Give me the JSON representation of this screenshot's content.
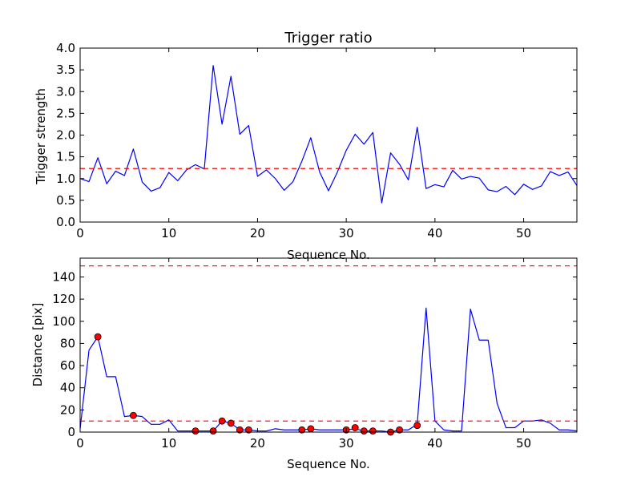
{
  "chart_data": [
    {
      "type": "line",
      "title": "Trigger ratio",
      "xlabel": "Sequence No.",
      "ylabel": "Trigger strength",
      "xlim": [
        0,
        56
      ],
      "ylim": [
        0,
        4.0
      ],
      "xticks": [
        0,
        10,
        20,
        30,
        40,
        50
      ],
      "xtick_labels": [
        "0",
        "10",
        "20",
        "30",
        "40",
        "50"
      ],
      "yticks": [
        0,
        0.5,
        1.0,
        1.5,
        2.0,
        2.5,
        3.0,
        3.5,
        4.0
      ],
      "ytick_labels": [
        "0.0",
        "0.5",
        "1.0",
        "1.5",
        "2.0",
        "2.5",
        "3.0",
        "3.5",
        "4.0"
      ],
      "grid": false,
      "series": [
        {
          "kind": "line",
          "color": "#0000ff",
          "x": [
            0,
            1,
            2,
            3,
            4,
            5,
            6,
            7,
            8,
            9,
            10,
            11,
            12,
            13,
            14,
            15,
            16,
            17,
            18,
            19,
            20,
            21,
            22,
            23,
            24,
            25,
            26,
            27,
            28,
            29,
            30,
            31,
            32,
            33,
            34,
            35,
            36,
            37,
            38,
            39,
            40,
            41,
            42,
            43,
            44,
            45,
            46,
            47,
            48,
            49,
            50,
            51,
            52,
            53,
            54,
            55,
            56
          ],
          "y": [
            1.0,
            0.93,
            1.48,
            0.88,
            1.17,
            1.07,
            1.68,
            0.92,
            0.71,
            0.79,
            1.14,
            0.95,
            1.2,
            1.32,
            1.22,
            3.6,
            2.25,
            3.35,
            2.02,
            2.22,
            1.05,
            1.2,
            1.0,
            0.73,
            0.93,
            1.4,
            1.94,
            1.15,
            0.72,
            1.15,
            1.65,
            2.02,
            1.79,
            2.06,
            0.44,
            1.59,
            1.33,
            0.97,
            2.18,
            0.77,
            0.86,
            0.81,
            1.19,
            0.99,
            1.05,
            1.01,
            0.74,
            0.7,
            0.82,
            0.63,
            0.87,
            0.75,
            0.83,
            1.16,
            1.07,
            1.15,
            0.84
          ]
        },
        {
          "kind": "hline",
          "color": "#ff0000",
          "dashed": true,
          "y": 1.23
        }
      ]
    },
    {
      "type": "line",
      "title": "",
      "xlabel": "Sequence No.",
      "ylabel": "Distance [pix]",
      "xlim": [
        0,
        56
      ],
      "ylim": [
        0,
        157
      ],
      "xticks": [
        0,
        10,
        20,
        30,
        40,
        50
      ],
      "xtick_labels": [
        "0",
        "10",
        "20",
        "30",
        "40",
        "50"
      ],
      "yticks": [
        0,
        20,
        40,
        60,
        80,
        100,
        120,
        140
      ],
      "ytick_labels": [
        "0",
        "20",
        "40",
        "60",
        "80",
        "100",
        "120",
        "140"
      ],
      "grid": false,
      "series": [
        {
          "kind": "line",
          "color": "#0000ff",
          "x": [
            0,
            1,
            2,
            3,
            4,
            5,
            6,
            7,
            8,
            9,
            10,
            11,
            12,
            13,
            14,
            15,
            16,
            17,
            18,
            19,
            20,
            21,
            22,
            23,
            24,
            25,
            26,
            27,
            28,
            29,
            30,
            31,
            32,
            33,
            34,
            35,
            36,
            37,
            38,
            39,
            40,
            41,
            42,
            43,
            44,
            45,
            46,
            47,
            48,
            49,
            50,
            51,
            52,
            53,
            54,
            55,
            56
          ],
          "y": [
            3,
            74,
            86,
            50,
            50,
            14,
            15,
            14,
            7,
            7,
            11,
            1,
            1,
            1,
            1,
            1,
            10,
            8,
            2,
            2,
            1,
            1,
            3,
            2,
            2,
            2,
            3,
            2,
            2,
            2,
            2,
            3,
            1,
            1,
            1,
            0,
            2,
            2,
            7,
            112,
            10,
            2,
            1,
            1,
            111,
            83,
            83,
            26,
            4,
            4,
            10,
            10,
            11,
            8,
            2,
            2,
            1
          ]
        },
        {
          "kind": "scatter",
          "color": "#ff0000",
          "x": [
            2,
            6,
            13,
            15,
            16,
            17,
            18,
            19,
            25,
            26,
            30,
            31,
            32,
            33,
            35,
            36,
            38
          ],
          "y": [
            86,
            15,
            1,
            1,
            10,
            8,
            2,
            2,
            2,
            3,
            2,
            4,
            1,
            1,
            0,
            2,
            6
          ]
        },
        {
          "kind": "hline",
          "color": "#ff0000",
          "dashed": true,
          "y": 150
        },
        {
          "kind": "hline",
          "color": "#ff0000",
          "dashed": true,
          "y": 10
        }
      ]
    }
  ]
}
